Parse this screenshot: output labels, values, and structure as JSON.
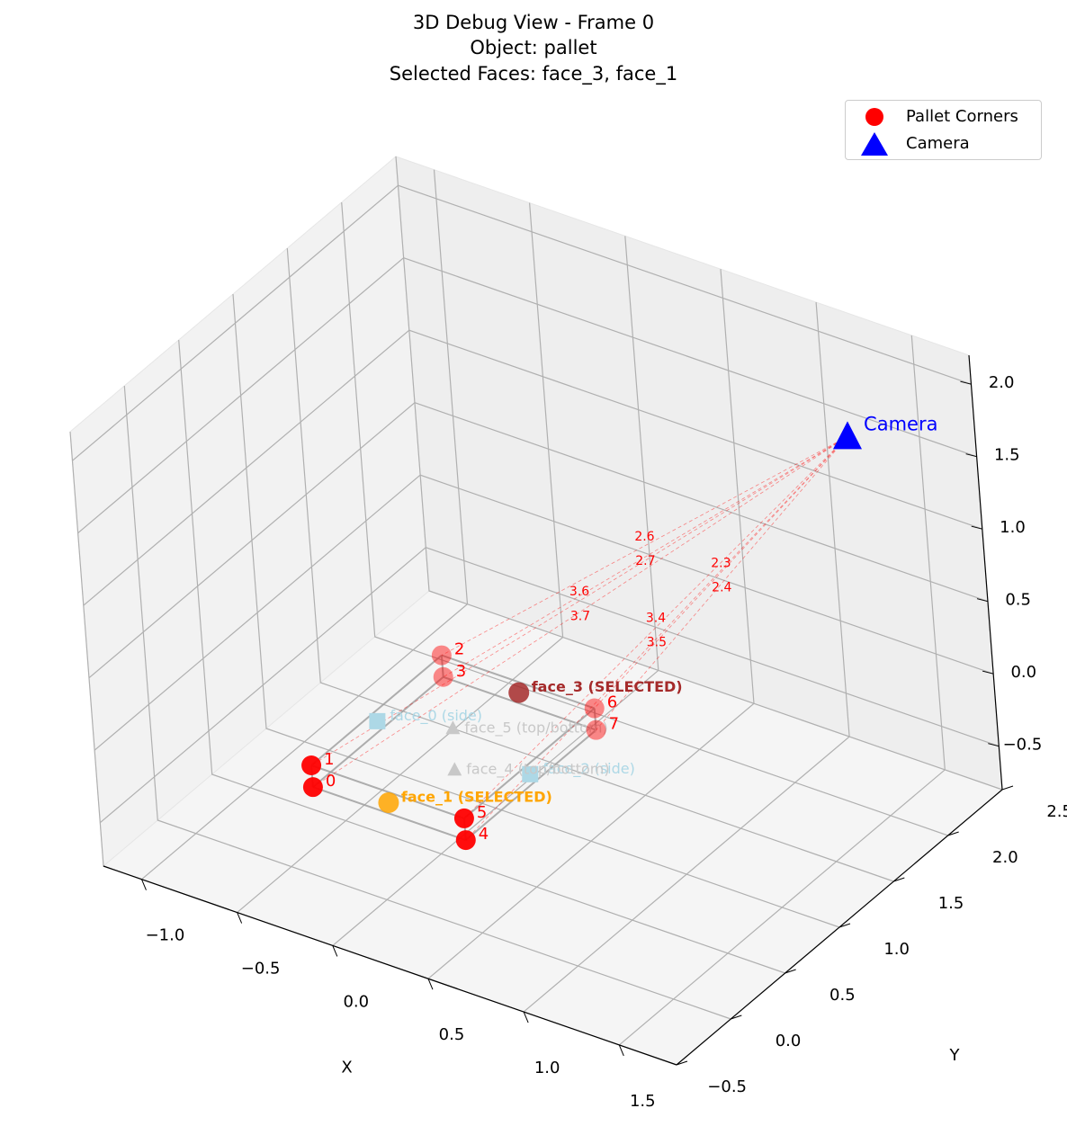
{
  "title_lines": [
    "3D Debug View - Frame 0",
    "Object: pallet",
    "Selected Faces: face_3, face_1"
  ],
  "legend": {
    "placement": "top-right",
    "items": [
      {
        "label": "Pallet Corners",
        "marker": "circle",
        "color": "#ff0000"
      },
      {
        "label": "Camera",
        "marker": "triangle",
        "color": "#0000ff"
      }
    ]
  },
  "colors": {
    "corners": "#ff0000",
    "camera": "#0000ff",
    "face_selected_primary": "#a52a2a",
    "face_selected_secondary": "#ffa500",
    "face_side": "#add8e6",
    "face_topbottom": "#c8c8c8",
    "edges": "#a0a0a0",
    "rays": "#ff0000"
  },
  "chart_data": {
    "type": "scatter",
    "projection": "3d",
    "title": "3D Debug View - Frame 0\nObject: pallet\nSelected Faces: face_3, face_1",
    "xlabel": "X",
    "ylabel": "Y",
    "zlabel": "",
    "xlim": [
      -1.2,
      1.8
    ],
    "ylim": [
      -0.5,
      2.5
    ],
    "zlim": [
      -0.8,
      2.2
    ],
    "xticks": [
      "−1.0",
      "−0.5",
      "0.0",
      "0.5",
      "1.0",
      "1.5"
    ],
    "yticks": [
      "−0.5",
      "0.0",
      "0.5",
      "1.0",
      "1.5",
      "2.0",
      "2.5"
    ],
    "zticks": [
      "−0.5",
      "0.0",
      "0.5",
      "1.0",
      "1.5",
      "2.0"
    ],
    "grid": true,
    "camera": {
      "label": "Camera",
      "x": 1.3,
      "y": 2.2,
      "z": 1.6
    },
    "corners": [
      {
        "label": "0",
        "x": -0.6,
        "y": 0.4,
        "z": -0.55
      },
      {
        "label": "1",
        "x": -0.6,
        "y": 0.4,
        "z": -0.4
      },
      {
        "label": "2",
        "x": -0.6,
        "y": 1.6,
        "z": -0.4
      },
      {
        "label": "3",
        "x": -0.6,
        "y": 1.6,
        "z": -0.55
      },
      {
        "label": "4",
        "x": 0.2,
        "y": 0.4,
        "z": -0.55
      },
      {
        "label": "5",
        "x": 0.2,
        "y": 0.4,
        "z": -0.4
      },
      {
        "label": "6",
        "x": 0.2,
        "y": 1.6,
        "z": -0.4
      },
      {
        "label": "7",
        "x": 0.2,
        "y": 1.6,
        "z": -0.55
      }
    ],
    "faces": [
      {
        "label": "face_0 (side)",
        "type": "side",
        "x": -0.6,
        "y": 1.0,
        "z": -0.475
      },
      {
        "label": "face_2 (side)",
        "type": "side",
        "x": 0.2,
        "y": 1.0,
        "z": -0.475
      },
      {
        "label": "face_5 (top/bottom)",
        "type": "topbottom",
        "x": -0.2,
        "y": 1.0,
        "z": -0.4
      },
      {
        "label": "face_4 (top/bottom)",
        "type": "topbottom",
        "x": -0.2,
        "y": 1.0,
        "z": -0.55
      },
      {
        "label": "face_3 (SELECTED)",
        "type": "selected_primary",
        "x": -0.2,
        "y": 1.6,
        "z": -0.475
      },
      {
        "label": "face_1 (SELECTED)",
        "type": "selected_secondary",
        "x": -0.2,
        "y": 0.4,
        "z": -0.475
      }
    ],
    "ray_distances": [
      {
        "corner": "0",
        "label": "3.7"
      },
      {
        "corner": "1",
        "label": "3.6"
      },
      {
        "corner": "2",
        "label": "2.6"
      },
      {
        "corner": "3",
        "label": "2.7"
      },
      {
        "corner": "4",
        "label": "3.5"
      },
      {
        "corner": "5",
        "label": "3.4"
      },
      {
        "corner": "6",
        "label": "2.3"
      },
      {
        "corner": "7",
        "label": "2.4"
      }
    ]
  }
}
